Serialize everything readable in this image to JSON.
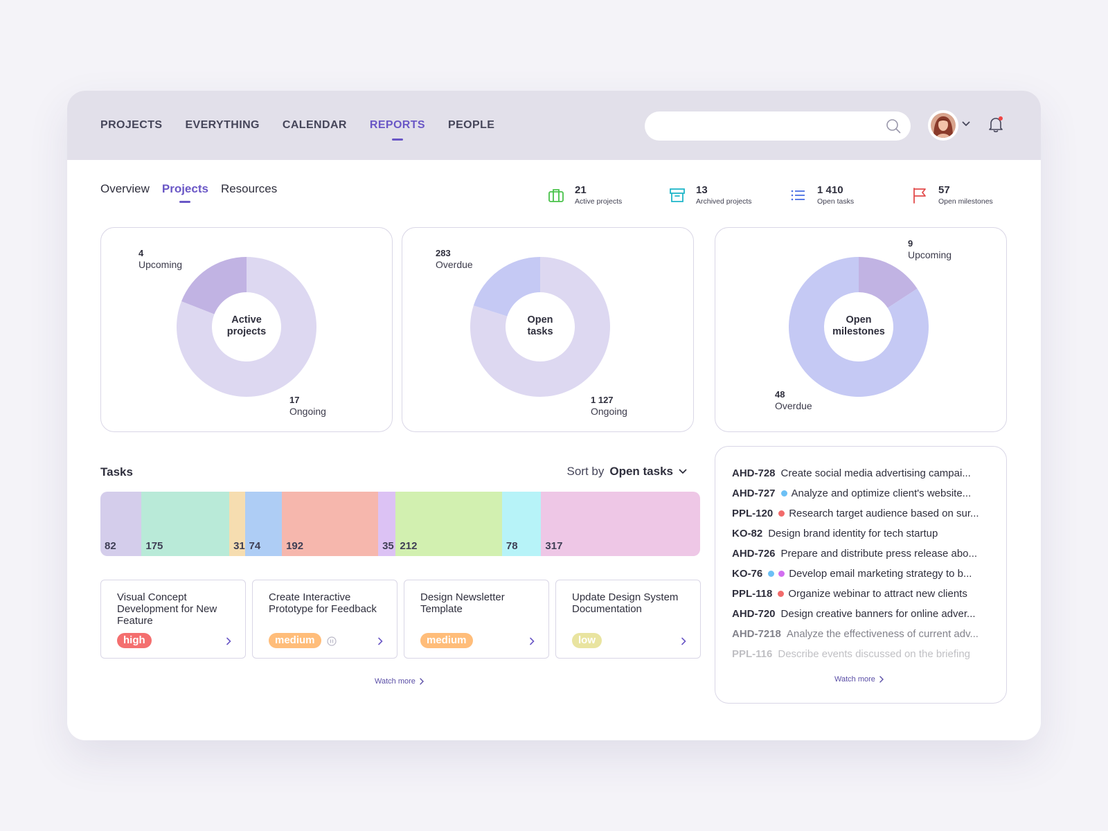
{
  "nav": {
    "items": [
      {
        "label": "PROJECTS",
        "active": false
      },
      {
        "label": "EVERYTHING",
        "active": false
      },
      {
        "label": "CALENDAR",
        "active": false
      },
      {
        "label": "REPORTS",
        "active": true
      },
      {
        "label": "PEOPLE",
        "active": false
      }
    ],
    "search": {
      "value": "",
      "placeholder": ""
    },
    "notification_dot_color": "#ef4444"
  },
  "subtabs": [
    {
      "label": "Overview",
      "active": false
    },
    {
      "label": "Projects",
      "active": true
    },
    {
      "label": "Resources",
      "active": false
    }
  ],
  "stats": [
    {
      "value": "21",
      "label": "Active projects",
      "icon": "briefcase-icon",
      "color": "#49c24a"
    },
    {
      "value": "13",
      "label": "Archived projects",
      "icon": "archive-icon",
      "color": "#1fb6c9"
    },
    {
      "value": "1 410",
      "label": "Open tasks",
      "icon": "list-icon",
      "color": "#4a6fe3"
    },
    {
      "value": "57",
      "label": "Open milestones",
      "icon": "flag-icon",
      "color": "#e24b4b"
    }
  ],
  "donuts": [
    {
      "center": [
        "Active",
        "projects"
      ],
      "segments": [
        {
          "value": 4,
          "name": "Upcoming",
          "color": "#c1b3e3"
        },
        {
          "value": 17,
          "name": "Ongoing",
          "color": "#ddd8f1"
        }
      ],
      "labels": [
        {
          "num": "4",
          "text": "Upcoming"
        },
        {
          "num": "17",
          "text": "Ongoing"
        }
      ]
    },
    {
      "center": [
        "Open",
        "tasks"
      ],
      "segments": [
        {
          "value": 283,
          "name": "Overdue",
          "color": "#c5c9f4"
        },
        {
          "value": 1127,
          "name": "Ongoing",
          "color": "#ddd8f1"
        }
      ],
      "labels": [
        {
          "num": "283",
          "text": "Overdue"
        },
        {
          "num": "1 127",
          "text": "Ongoing"
        }
      ]
    },
    {
      "center": [
        "Open",
        "milestones"
      ],
      "segments": [
        {
          "value": 9,
          "name": "Upcoming",
          "color": "#c1b3e3"
        },
        {
          "value": 48,
          "name": "Overdue",
          "color": "#c5c9f4"
        }
      ],
      "labels": [
        {
          "num": "9",
          "text": "Upcoming"
        },
        {
          "num": "48",
          "text": "Overdue"
        }
      ]
    }
  ],
  "tasks": {
    "title": "Tasks",
    "sort_prefix": "Sort by",
    "sort_value": "Open tasks",
    "bar": [
      {
        "value": 82,
        "label": "82",
        "color": "#d4cdeb"
      },
      {
        "value": 175,
        "label": "175",
        "color": "#b9ead8"
      },
      {
        "value": 31,
        "label": "31",
        "color": "#f6ddb0"
      },
      {
        "value": 74,
        "label": "74",
        "color": "#aecdf5"
      },
      {
        "value": 192,
        "label": "192",
        "color": "#f6b7ad"
      },
      {
        "value": 35,
        "label": "35",
        "color": "#dcc2f4"
      },
      {
        "value": 212,
        "label": "212",
        "color": "#d2f0b0"
      },
      {
        "value": 78,
        "label": "78",
        "color": "#b7f3f8"
      },
      {
        "value": 317,
        "label": "317",
        "color": "#eec7e6"
      }
    ],
    "cards": [
      {
        "title": "Visual Concept Development for New Feature",
        "priority": "high",
        "color": "#f46f6f",
        "paused": false
      },
      {
        "title": "Create Interactive Prototype for Feedback",
        "priority": "medium",
        "color": "#ffbd7a",
        "paused": true
      },
      {
        "title": "Design Newsletter Template",
        "priority": "medium",
        "color": "#ffbd7a",
        "paused": false
      },
      {
        "title": "Update Design System Documentation",
        "priority": "low",
        "color": "#e9e4a0",
        "paused": false
      }
    ],
    "watch_more": "Watch more"
  },
  "task_list": {
    "items": [
      {
        "id": "AHD-728",
        "text": "Create social media advertising campai...",
        "dots": [],
        "faded": 0
      },
      {
        "id": "AHD-727",
        "text": "Analyze and optimize client's website...",
        "dots": [
          "#6cc0f5"
        ],
        "faded": 0
      },
      {
        "id": "PPL-120",
        "text": "Research target audience based on sur...",
        "dots": [
          "#f26b6b"
        ],
        "faded": 0
      },
      {
        "id": "KO-82",
        "text": "Design brand identity for tech startup",
        "dots": [],
        "faded": 0
      },
      {
        "id": "AHD-726",
        "text": "Prepare and distribute press release abo...",
        "dots": [],
        "faded": 0
      },
      {
        "id": "KO-76",
        "text": "Develop email marketing strategy to b...",
        "dots": [
          "#6cc0f5",
          "#d26ef0"
        ],
        "faded": 0
      },
      {
        "id": "PPL-118",
        "text": "Organize webinar to attract new clients",
        "dots": [
          "#f26b6b"
        ],
        "faded": 0
      },
      {
        "id": "AHD-720",
        "text": "Design creative banners for online adver...",
        "dots": [],
        "faded": 0
      },
      {
        "id": "AHD-7218",
        "text": "Analyze the effectiveness of current adv...",
        "dots": [],
        "faded": 1
      },
      {
        "id": "PPL-116",
        "text": "Describe events discussed on the briefing",
        "dots": [],
        "faded": 2
      }
    ],
    "watch_more": "Watch more"
  }
}
